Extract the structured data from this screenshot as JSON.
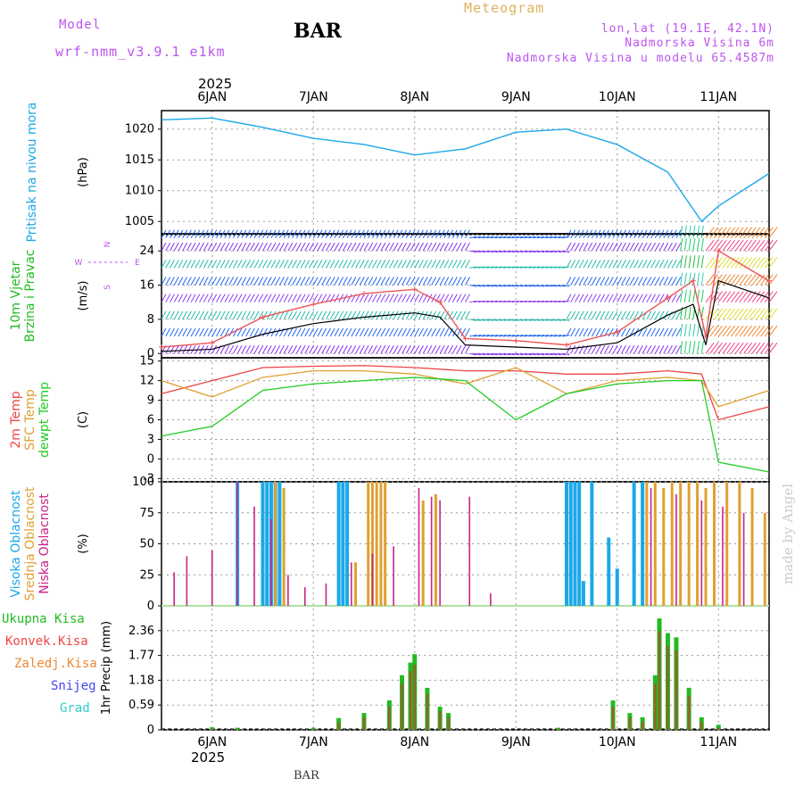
{
  "header": {
    "model_label": "Model",
    "model_name": "wrf-nmm_v3.9.1 e1km",
    "station": "BAR",
    "product": "Meteogram",
    "lonlat": "lon,lat (19.1E, 42.1N)",
    "elevation": "Nadmorska Visina 6m",
    "model_elevation": "Nadmorska Visina u modelu 65.4587m"
  },
  "footer": {
    "station": "BAR",
    "credit": "made by Angel"
  },
  "time_axis": {
    "year": "2025",
    "labels": [
      "6JAN",
      "7JAN",
      "8JAN",
      "9JAN",
      "10JAN",
      "11JAN"
    ],
    "start": "2025-01-05T12:00",
    "end": "2025-01-11T12:00"
  },
  "colors": {
    "pressure": "#1ba8e8",
    "wind_label": "#22bb22",
    "wind_dir": "#bb55ee",
    "temp2m": "#ee4444",
    "sfc": "#e0a030",
    "dew": "#22cc22",
    "high": "#1ba8e8",
    "mid": "#e0a030",
    "low": "#cc2288",
    "total": "#22bb22",
    "conv": "#ee4444",
    "strat": "#ee8833",
    "snow": "#4444ee",
    "hail": "#33cccc"
  },
  "chart_data": [
    {
      "type": "line",
      "ylabel": "(hPa)",
      "panel_title": "Pritisak na nivou mora",
      "ylim": [
        1003,
        1023
      ],
      "ticks": [
        1005,
        1010,
        1015,
        1020
      ],
      "x": [
        "2025-01-05T12:00",
        "2025-01-06T00:00",
        "2025-01-06T12:00",
        "2025-01-07T00:00",
        "2025-01-07T12:00",
        "2025-01-08T00:00",
        "2025-01-08T12:00",
        "2025-01-09T00:00",
        "2025-01-09T12:00",
        "2025-01-10T00:00",
        "2025-01-10T12:00",
        "2025-01-10T20:00",
        "2025-01-11T00:00",
        "2025-01-11T12:00"
      ],
      "series": [
        {
          "values": [
            1021.5,
            1021.8,
            1020.3,
            1018.5,
            1017.5,
            1015.8,
            1016.8,
            1019.5,
            1020.0,
            1017.5,
            1013.0,
            1005.0,
            1007.5,
            1012.8
          ]
        }
      ]
    },
    {
      "type": "line",
      "ylabel": "(m/s)",
      "panel_title": [
        "10m Vjetar",
        "Brzina i Pravac"
      ],
      "compass": {
        "n": "N",
        "s": "S",
        "e": "E",
        "w": "W"
      },
      "ylim": [
        -1,
        28
      ],
      "ticks": [
        0,
        8,
        16,
        24
      ],
      "x": [
        "2025-01-05T12:00",
        "2025-01-06T00:00",
        "2025-01-06T12:00",
        "2025-01-07T00:00",
        "2025-01-07T12:00",
        "2025-01-08T00:00",
        "2025-01-08T06:00",
        "2025-01-08T12:00",
        "2025-01-09T00:00",
        "2025-01-09T12:00",
        "2025-01-10T00:00",
        "2025-01-10T12:00",
        "2025-01-10T18:00",
        "2025-01-10T21:00",
        "2025-01-11T00:00",
        "2025-01-11T12:00"
      ],
      "series": [
        {
          "name": "speed",
          "values": [
            0.5,
            1.0,
            4.5,
            7.0,
            8.5,
            9.5,
            8.5,
            2.0,
            1.5,
            1.0,
            2.5,
            9.0,
            11.5,
            2.0,
            17.0,
            13.0
          ]
        },
        {
          "name": "gust",
          "values": [
            1.5,
            2.5,
            8.5,
            11.5,
            14.0,
            15.0,
            12.0,
            3.5,
            3.0,
            2.0,
            5.0,
            13.0,
            17.0,
            4.0,
            24.0,
            17.0
          ]
        }
      ]
    },
    {
      "type": "line",
      "ylabel": "(C)",
      "panel_title": [
        "2m Temp",
        "SFC Temp",
        "dewpt Temp"
      ],
      "ylim": [
        -3.5,
        15.5
      ],
      "ticks": [
        -3,
        0,
        3,
        6,
        9,
        12,
        15
      ],
      "x": [
        "2025-01-05T12:00",
        "2025-01-06T00:00",
        "2025-01-06T12:00",
        "2025-01-07T00:00",
        "2025-01-07T12:00",
        "2025-01-08T00:00",
        "2025-01-08T12:00",
        "2025-01-09T00:00",
        "2025-01-09T12:00",
        "2025-01-10T00:00",
        "2025-01-10T12:00",
        "2025-01-10T20:00",
        "2025-01-11T00:00",
        "2025-01-11T12:00"
      ],
      "series": [
        {
          "name": "2m Temp",
          "values": [
            10.0,
            12.0,
            14.0,
            14.2,
            14.3,
            14.0,
            13.5,
            13.5,
            13.0,
            13.0,
            13.5,
            13.0,
            6.0,
            8.0
          ]
        },
        {
          "name": "SFC Temp",
          "values": [
            12.0,
            9.5,
            12.5,
            13.5,
            13.5,
            13.0,
            11.5,
            14.0,
            10.0,
            12.0,
            12.5,
            12.0,
            8.0,
            10.5
          ]
        },
        {
          "name": "dewpt Temp",
          "values": [
            3.5,
            5.0,
            10.5,
            11.5,
            12.0,
            12.5,
            12.0,
            6.0,
            10.0,
            11.5,
            12.0,
            12.0,
            -0.5,
            -2.0
          ]
        }
      ]
    },
    {
      "type": "bar",
      "ylabel": "(%)",
      "panel_title": [
        "Visoka Oblacnost",
        "Srednja Oblacnost",
        "Niska Oblacnost"
      ],
      "ylim": [
        0,
        100
      ],
      "ticks": [
        0,
        25,
        50,
        75,
        100
      ],
      "series": [
        {
          "name": "Visoka Oblacnost",
          "x": [
            "2025-01-06T06:00",
            "2025-01-06T12:00",
            "2025-01-06T13:00",
            "2025-01-06T14:00",
            "2025-01-06T15:00",
            "2025-01-06T16:00",
            "2025-01-07T06:00",
            "2025-01-07T07:00",
            "2025-01-07T08:00",
            "2025-01-09T12:00",
            "2025-01-09T13:00",
            "2025-01-09T14:00",
            "2025-01-09T15:00",
            "2025-01-09T16:00",
            "2025-01-09T18:00",
            "2025-01-09T22:00",
            "2025-01-10T00:00",
            "2025-01-10T04:00",
            "2025-01-10T06:00"
          ],
          "values": [
            100,
            100,
            100,
            100,
            100,
            100,
            100,
            100,
            100,
            100,
            100,
            100,
            100,
            20,
            100,
            55,
            30,
            100,
            100
          ]
        },
        {
          "name": "Srednja Oblacnost",
          "x": [
            "2025-01-06T15:00",
            "2025-01-06T17:00",
            "2025-01-07T10:00",
            "2025-01-07T13:00",
            "2025-01-07T14:00",
            "2025-01-07T15:00",
            "2025-01-07T16:00",
            "2025-01-07T17:00",
            "2025-01-08T02:00",
            "2025-01-08T05:00",
            "2025-01-10T07:00",
            "2025-01-10T09:00",
            "2025-01-10T11:00",
            "2025-01-10T13:00",
            "2025-01-10T15:00",
            "2025-01-10T17:00",
            "2025-01-10T19:00",
            "2025-01-10T21:00",
            "2025-01-10T23:00",
            "2025-01-11T02:00",
            "2025-01-11T05:00",
            "2025-01-11T08:00",
            "2025-01-11T11:00"
          ],
          "values": [
            100,
            95,
            35,
            100,
            100,
            100,
            100,
            100,
            85,
            90,
            100,
            100,
            95,
            100,
            100,
            100,
            100,
            95,
            100,
            100,
            100,
            95,
            75
          ]
        },
        {
          "name": "Niska Oblacnost",
          "x": [
            "2025-01-05T15:00",
            "2025-01-05T18:00",
            "2025-01-06T00:00",
            "2025-01-06T06:00",
            "2025-01-06T10:00",
            "2025-01-06T14:00",
            "2025-01-06T18:00",
            "2025-01-06T22:00",
            "2025-01-07T03:00",
            "2025-01-07T09:00",
            "2025-01-07T14:00",
            "2025-01-07T19:00",
            "2025-01-08T01:00",
            "2025-01-08T04:00",
            "2025-01-08T06:00",
            "2025-01-08T13:00",
            "2025-01-08T18:00",
            "2025-01-10T08:00",
            "2025-01-10T14:00",
            "2025-01-10T20:00",
            "2025-01-11T01:00",
            "2025-01-11T06:00"
          ],
          "values": [
            27,
            40,
            45,
            100,
            80,
            70,
            25,
            15,
            18,
            35,
            42,
            48,
            95,
            88,
            85,
            88,
            10,
            95,
            90,
            85,
            80,
            75
          ]
        }
      ]
    },
    {
      "type": "bar",
      "ylabel": "1hr Precip (mm)",
      "panel_title": [
        "Ukupna Kisa",
        "Konvek.Kisa",
        "Zaledj.Kisa",
        "Snijeg",
        "Grad"
      ],
      "ylim": [
        0,
        2.95
      ],
      "ticks": [
        0,
        0.59,
        1.18,
        1.77,
        2.36
      ],
      "tick_labels": [
        "0",
        "0.59",
        "1.18",
        "1.77",
        "2.36"
      ],
      "x": [
        "2025-01-06T00:00",
        "2025-01-06T06:00",
        "2025-01-07T00:00",
        "2025-01-07T06:00",
        "2025-01-07T12:00",
        "2025-01-07T18:00",
        "2025-01-07T21:00",
        "2025-01-07T23:00",
        "2025-01-08T00:00",
        "2025-01-08T03:00",
        "2025-01-08T06:00",
        "2025-01-08T08:00",
        "2025-01-09T10:00",
        "2025-01-09T23:00",
        "2025-01-10T03:00",
        "2025-01-10T06:00",
        "2025-01-10T09:00",
        "2025-01-10T10:00",
        "2025-01-10T12:00",
        "2025-01-10T14:00",
        "2025-01-10T17:00",
        "2025-01-10T20:00",
        "2025-01-11T00:00"
      ],
      "series": [
        {
          "name": "Ukupna Kisa",
          "values": [
            0.06,
            0.05,
            0.05,
            0.28,
            0.4,
            0.7,
            1.3,
            1.6,
            1.8,
            1.0,
            0.55,
            0.4,
            0.05,
            0.7,
            0.4,
            0.3,
            1.3,
            2.65,
            2.3,
            2.2,
            1.0,
            0.3,
            0.12
          ]
        },
        {
          "name": "Konvek.Kisa",
          "values": [
            0.03,
            0.02,
            0.02,
            0.18,
            0.3,
            0.55,
            1.1,
            1.4,
            1.55,
            0.85,
            0.45,
            0.3,
            0.02,
            0.55,
            0.3,
            0.2,
            1.1,
            2.35,
            2.0,
            1.9,
            0.8,
            0.2,
            0.05
          ]
        }
      ]
    }
  ]
}
